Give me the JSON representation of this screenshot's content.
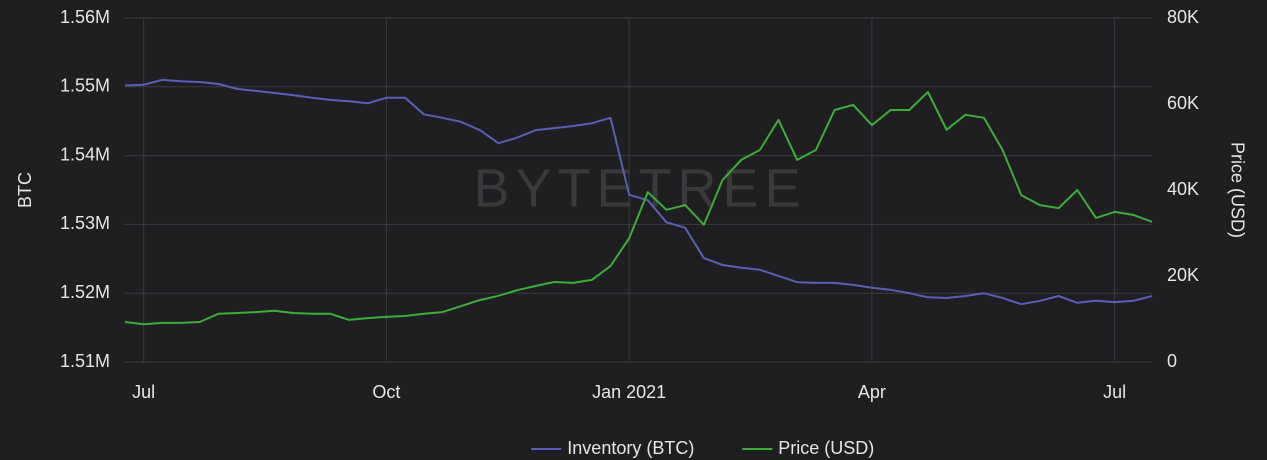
{
  "chart_data": {
    "type": "line",
    "watermark": "BYTETREE",
    "y_label": "BTC",
    "y2_label": "Price (USD)",
    "categories": [
      null,
      "Jul",
      null,
      null,
      null,
      null,
      null,
      null,
      null,
      null,
      null,
      null,
      null,
      null,
      "Oct",
      null,
      null,
      null,
      null,
      null,
      null,
      null,
      null,
      null,
      null,
      null,
      null,
      "Jan 2021",
      null,
      null,
      null,
      null,
      null,
      null,
      null,
      null,
      null,
      null,
      null,
      null,
      "Apr",
      null,
      null,
      null,
      null,
      null,
      null,
      null,
      null,
      null,
      null,
      null,
      null,
      "Jul",
      null,
      null
    ],
    "series": [
      {
        "name": "Inventory (BTC)",
        "color": "#5a5fb5",
        "axis": "y",
        "values": [
          1550200,
          1550300,
          1551000,
          1550800,
          1550700,
          1550400,
          1549700,
          1549400,
          1549100,
          1548800,
          1548400,
          1548100,
          1547900,
          1547600,
          1548400,
          1548400,
          1546000,
          1545500,
          1544900,
          1543700,
          1541800,
          1542600,
          1543700,
          1544000,
          1544300,
          1544700,
          1545500,
          1534300,
          1533500,
          1530300,
          1529500,
          1525100,
          1524100,
          1523700,
          1523400,
          1522500,
          1521600,
          1521500,
          1521500,
          1521200,
          1520800,
          1520500,
          1520000,
          1519400,
          1519300,
          1519600,
          1520000,
          1519300,
          1518400,
          1518900,
          1519600,
          1518600,
          1518900,
          1518700,
          1518900,
          1519600
        ]
      },
      {
        "name": "Price (USD)",
        "color": "#3cad37",
        "axis": "y2",
        "values": [
          9300,
          8800,
          9100,
          9100,
          9300,
          11200,
          11400,
          11600,
          11900,
          11400,
          11200,
          11200,
          9800,
          10200,
          10500,
          10700,
          11200,
          11600,
          13000,
          14400,
          15400,
          16700,
          17700,
          18600,
          18400,
          19100,
          22300,
          28800,
          39500,
          35400,
          36500,
          31900,
          42300,
          47000,
          49300,
          56300,
          47000,
          49300,
          58600,
          59800,
          55100,
          58600,
          58600,
          62800,
          54000,
          57500,
          56800,
          49300,
          38800,
          36500,
          35800,
          40000,
          33500,
          34900,
          34200,
          32600
        ]
      }
    ],
    "ylim": [
      1510000,
      1560000
    ],
    "yticks": [
      {
        "value": 1510000,
        "label": "1.51M"
      },
      {
        "value": 1520000,
        "label": "1.52M"
      },
      {
        "value": 1530000,
        "label": "1.53M"
      },
      {
        "value": 1540000,
        "label": "1.54M"
      },
      {
        "value": 1550000,
        "label": "1.55M"
      },
      {
        "value": 1560000,
        "label": "1.56M"
      }
    ],
    "y2lim": [
      0,
      80000
    ],
    "y2ticks": [
      0,
      {
        "value": 20000,
        "label": "20K"
      },
      {
        "value": 40000,
        "label": "40K"
      },
      {
        "value": 60000,
        "label": "60K"
      },
      {
        "value": 80000,
        "label": "80K"
      }
    ],
    "grid": true,
    "legend": "bottom"
  }
}
